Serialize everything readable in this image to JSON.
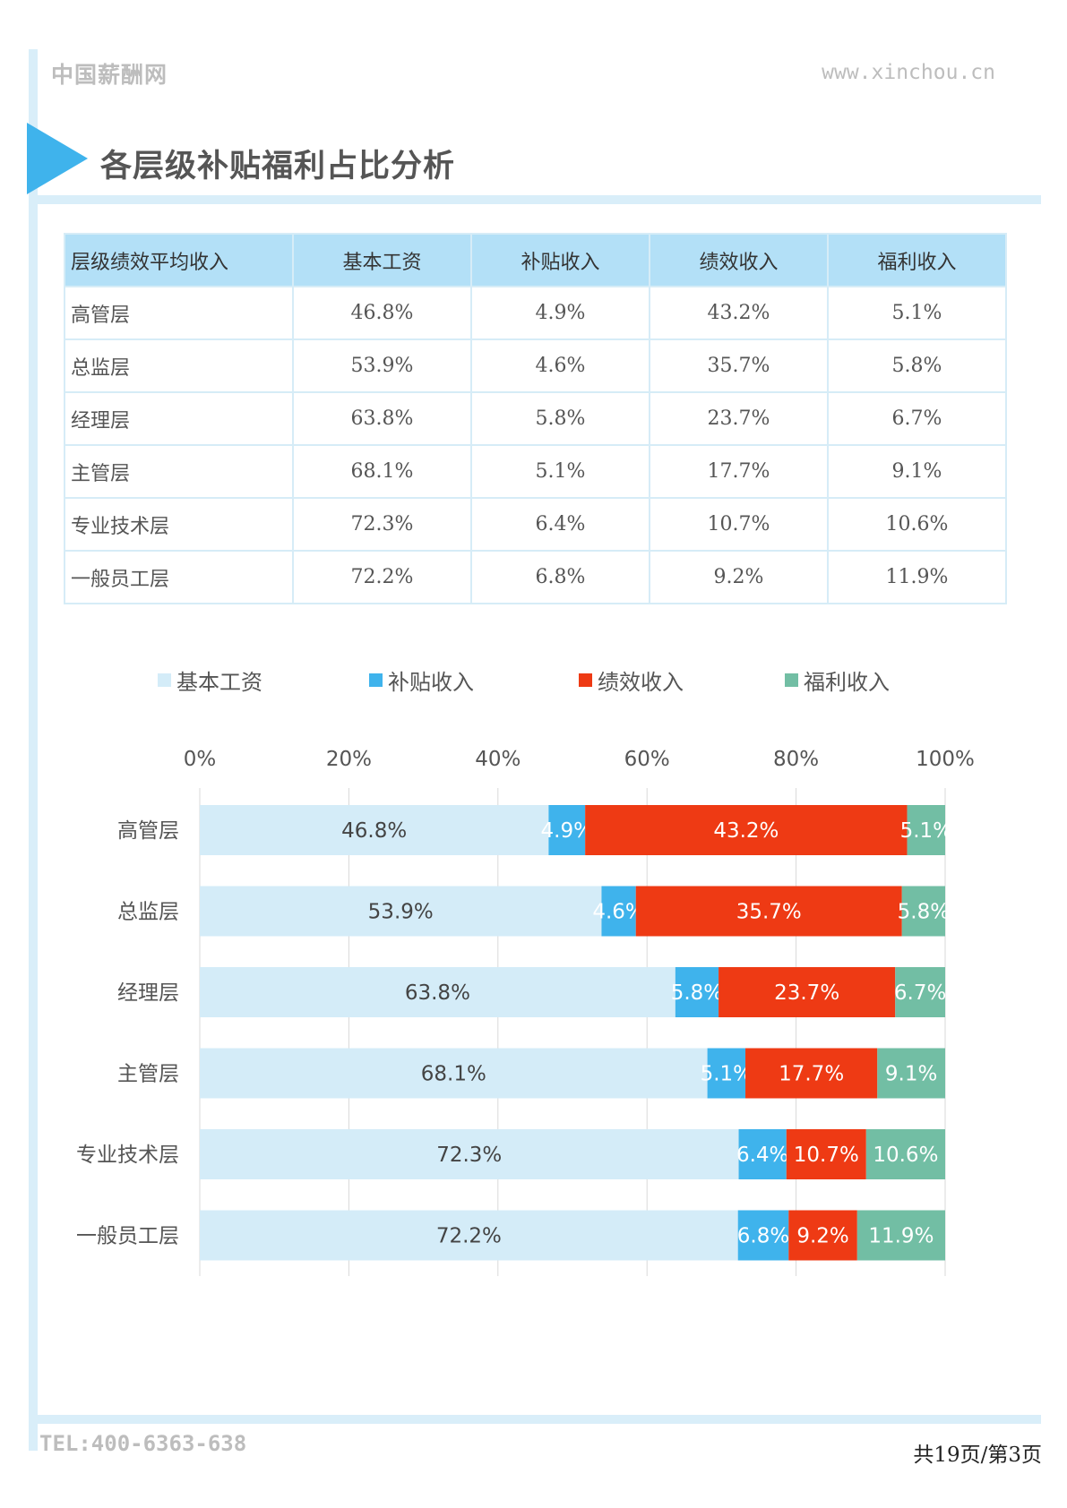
{
  "header": {
    "brand": "中国薪酬网",
    "site": "www.xinchou.cn",
    "title": "各层级补贴福利占比分析"
  },
  "table": {
    "headers": [
      "层级绩效平均收入",
      "基本工资",
      "补贴收入",
      "绩效收入",
      "福利收入"
    ],
    "rows": [
      [
        "高管层",
        "46.8%",
        "4.9%",
        "43.2%",
        "5.1%"
      ],
      [
        "总监层",
        "53.9%",
        "4.6%",
        "35.7%",
        "5.8%"
      ],
      [
        "经理层",
        "63.8%",
        "5.8%",
        "23.7%",
        "6.7%"
      ],
      [
        "主管层",
        "68.1%",
        "5.1%",
        "17.7%",
        "9.1%"
      ],
      [
        "专业技术层",
        "72.3%",
        "6.4%",
        "10.7%",
        "10.6%"
      ],
      [
        "一般员工层",
        "72.2%",
        "6.8%",
        "9.2%",
        "11.9%"
      ]
    ]
  },
  "chart_data": {
    "type": "bar",
    "orientation": "horizontal",
    "stacked": true,
    "percent": true,
    "title": "",
    "xlabel": "",
    "ylabel": "",
    "xlim": [
      0,
      100
    ],
    "ticks": [
      "0%",
      "20%",
      "40%",
      "60%",
      "80%",
      "100%"
    ],
    "tick_values": [
      0,
      20,
      40,
      60,
      80,
      100
    ],
    "legend_position": "top",
    "grid": true,
    "categories": [
      "高管层",
      "总监层",
      "经理层",
      "主管层",
      "专业技术层",
      "一般员工层"
    ],
    "series": [
      {
        "name": "基本工资",
        "color": "#d4ecf8",
        "label_color": "#444444",
        "values": [
          46.8,
          53.9,
          63.8,
          68.1,
          72.3,
          72.2
        ]
      },
      {
        "name": "补贴收入",
        "color": "#3fb3ec",
        "label_color": "#ffffff",
        "values": [
          4.9,
          4.6,
          5.8,
          5.1,
          6.4,
          6.8
        ]
      },
      {
        "name": "绩效收入",
        "color": "#ee3a14",
        "label_color": "#ffffff",
        "values": [
          43.2,
          35.7,
          23.7,
          17.7,
          10.7,
          9.2
        ]
      },
      {
        "name": "福利收入",
        "color": "#72bea4",
        "label_color": "#ffffff",
        "values": [
          5.1,
          5.8,
          6.7,
          9.1,
          10.6,
          11.9
        ]
      }
    ]
  },
  "footer": {
    "tel": "TEL:400-6363-638",
    "page": "共19页/第3页"
  }
}
